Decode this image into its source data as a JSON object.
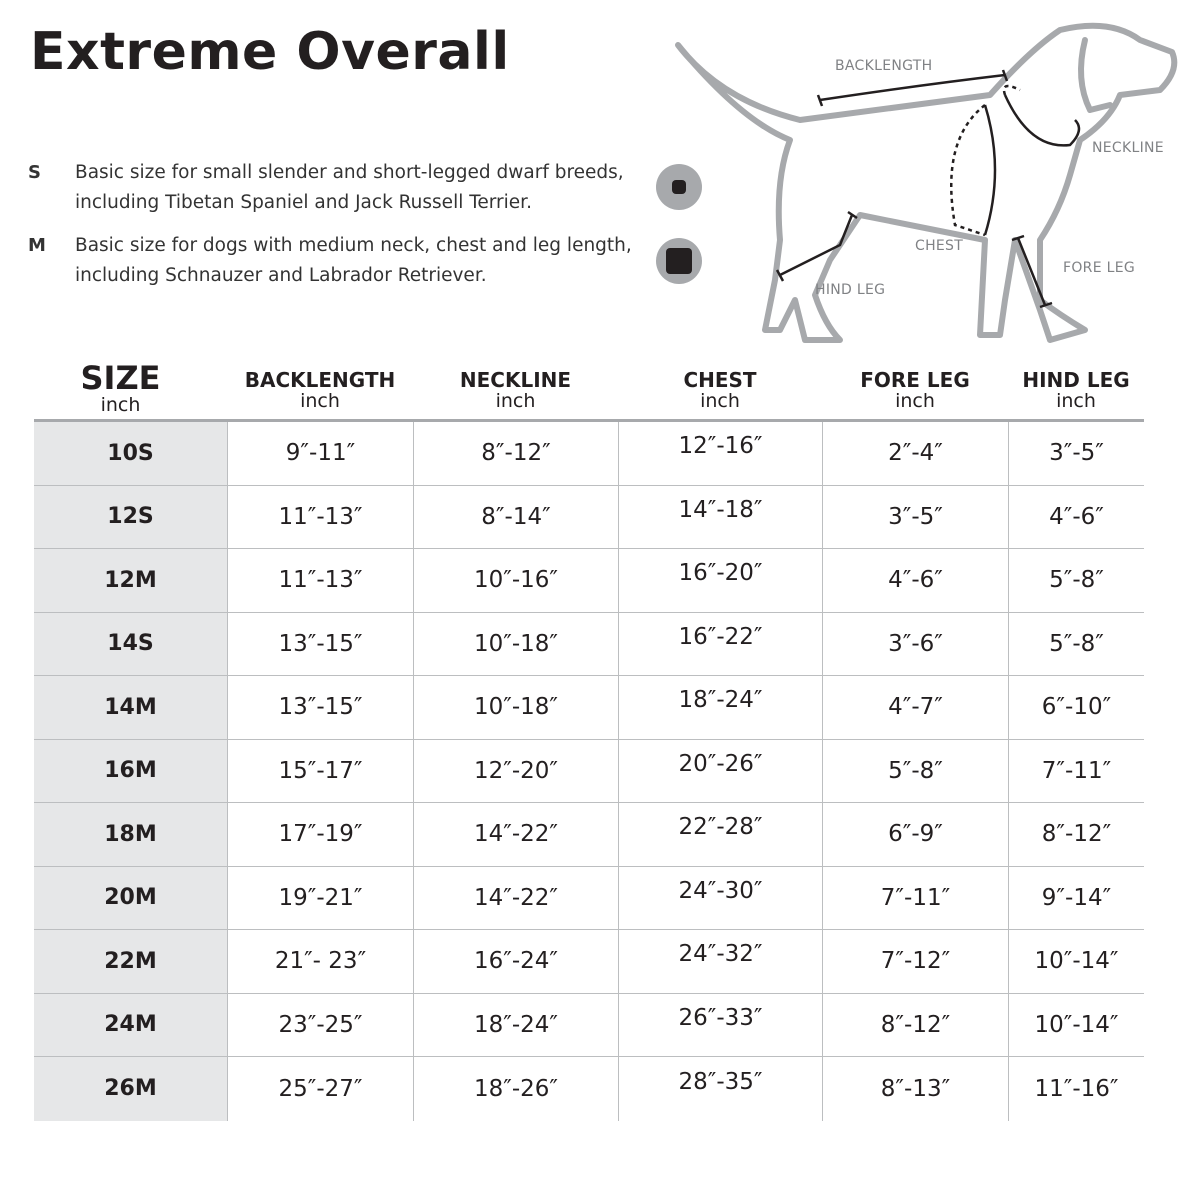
{
  "title": "Extreme Overall",
  "sizes_info": [
    {
      "code": "S",
      "line1": "Basic size for small slender and short-legged dwarf breeds,",
      "line2": "including Tibetan Spaniel and Jack Russell Terrier.",
      "icon": "small-square-badge-icon"
    },
    {
      "code": "M",
      "line1": "Basic size for dogs with medium neck, chest and leg length,",
      "line2": "including Schnauzer and Labrador Retriever.",
      "icon": "medium-square-badge-icon"
    }
  ],
  "diagram_labels": {
    "backlength": "BACKLENGTH",
    "neckline": "NECKLINE",
    "chest": "CHEST",
    "fore_leg": "FORE LEG",
    "hind_leg": "HIND LEG"
  },
  "headers": [
    {
      "label": "SIZE",
      "unit": "inch"
    },
    {
      "label": "BACKLENGTH",
      "unit": "inch"
    },
    {
      "label": "NECKLINE",
      "unit": "inch"
    },
    {
      "label": "CHEST",
      "unit": "inch"
    },
    {
      "label": "FORE LEG",
      "unit": "inch"
    },
    {
      "label": "HIND LEG",
      "unit": "inch"
    }
  ],
  "rows": [
    [
      "10S",
      "9″-11″",
      "8″-12″",
      "12″-16″",
      "2″-4″",
      "3″-5″"
    ],
    [
      "12S",
      "11″-13″",
      "8″-14″",
      "14″-18″",
      "3″-5″",
      "4″-6″"
    ],
    [
      "12M",
      "11″-13″",
      "10″-16″",
      "16″-20″",
      "4″-6″",
      "5″-8″"
    ],
    [
      "14S",
      "13″-15″",
      "10″-18″",
      "16″-22″",
      "3″-6″",
      "5″-8″"
    ],
    [
      "14M",
      "13″-15″",
      "10″-18″",
      "18″-24″",
      "4″-7″",
      "6″-10″"
    ],
    [
      "16M",
      "15″-17″",
      "12″-20″",
      "20″-26″",
      "5″-8″",
      "7″-11″"
    ],
    [
      "18M",
      "17″-19″",
      "14″-22″",
      "22″-28″",
      "6″-9″",
      "8″-12″"
    ],
    [
      "20M",
      "19″-21″",
      "14″-22″",
      "24″-30″",
      "7″-11″",
      "9″-14″"
    ],
    [
      "22M",
      "21″- 23″",
      "16″-24″",
      "24″-32″",
      "7″-12″",
      "10″-14″"
    ],
    [
      "24M",
      "23″-25″",
      "18″-24″",
      "26″-33″",
      "8″-12″",
      "10″-14″"
    ],
    [
      "26M",
      "25″-27″",
      "18″-26″",
      "28″-35″",
      "8″-13″",
      "11″-16″"
    ]
  ]
}
